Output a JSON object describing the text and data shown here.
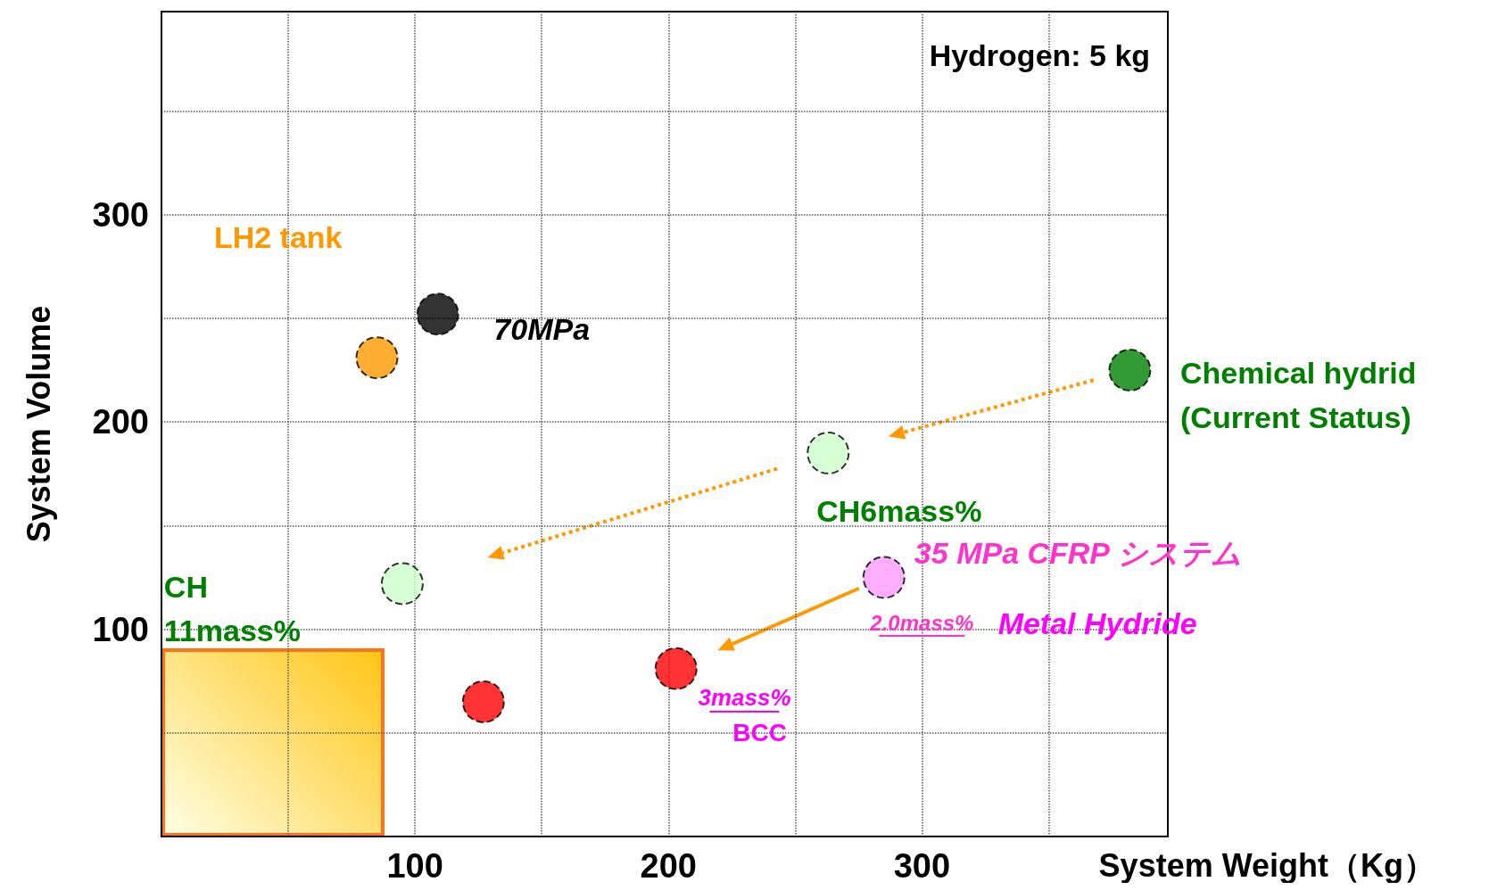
{
  "chart_data": {
    "type": "scatter",
    "xlabel": "System Weight（Kg）",
    "ylabel": "System Volume",
    "x": [
      85,
      109,
      382,
      263,
      95,
      285,
      203,
      127
    ],
    "values": [
      231,
      252,
      225,
      185,
      122,
      125,
      81,
      65
    ],
    "colors": [
      "#ff9900",
      "#000000",
      "#008000",
      "#ccffcc",
      "#ccffcc",
      "#ff99ff",
      "#ff0000",
      "#ff0000"
    ],
    "marker": "circle",
    "grid": true,
    "xlim": [
      0,
      397
    ],
    "ylim": [
      0,
      398
    ],
    "xticks": [
      {
        "value": 50,
        "label": null
      },
      100,
      {
        "value": 150,
        "label": null
      },
      200,
      {
        "value": 250,
        "label": null
      },
      300,
      {
        "value": 350,
        "label": null
      }
    ],
    "yticks": [
      {
        "value": 50,
        "label": null
      },
      100,
      {
        "value": 150,
        "label": null
      },
      200,
      {
        "value": 250,
        "label": null
      },
      300,
      {
        "value": 350,
        "label": null
      }
    ],
    "annotations": [
      "Hydrogen: 5 kg",
      "LH2 tank",
      "70MPa",
      "Chemical hydrid\n(Current Status)",
      "CH6mass%",
      "CH\n11mass%",
      "35 MPa CFRP システム",
      "2.0mass%",
      "Metal Hydride",
      "3mass%",
      "BCC"
    ]
  }
}
